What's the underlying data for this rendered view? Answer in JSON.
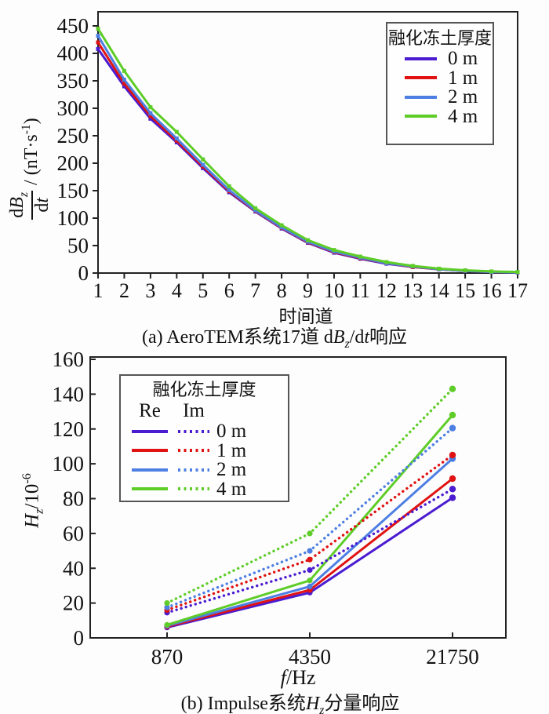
{
  "page": {
    "background": "#fdfdfd"
  },
  "colors": {
    "axis": "#222222",
    "text": "#111111",
    "series": {
      "0 m": "#4a1bd0",
      "1 m": "#e01212",
      "2 m": "#4d7fe3",
      "4 m": "#5ecd28"
    }
  },
  "chart_data": [
    {
      "id": "aerotem",
      "type": "line",
      "caption": {
        "pre": "(a) AeroTEM系统17道 d",
        "var1": "B",
        "sub1": "z",
        "mid": "/d",
        "var2": "t",
        "post": "响应"
      },
      "xlabel": "时间道",
      "ylabel": {
        "num_pre": "d",
        "num_var": "B",
        "num_sub": "z",
        "den_pre": "d",
        "den_var": "t",
        "units_pre": " / (nT·s",
        "units_sup": "-1",
        "units_post": ")"
      },
      "x": [
        1,
        2,
        3,
        4,
        5,
        6,
        7,
        8,
        9,
        10,
        11,
        12,
        13,
        14,
        15,
        16,
        17
      ],
      "xticks": [
        1,
        2,
        3,
        4,
        5,
        6,
        7,
        8,
        9,
        10,
        11,
        12,
        13,
        14,
        15,
        16,
        17
      ],
      "xlim": [
        1,
        17
      ],
      "yticks": [
        0,
        50,
        100,
        150,
        200,
        250,
        300,
        350,
        400,
        450
      ],
      "ylim": [
        0,
        476
      ],
      "grid": false,
      "legend_position": "top-right",
      "legend": {
        "title": "融化冻土厚度",
        "items": [
          "0 m",
          "1 m",
          "2 m",
          "4 m"
        ]
      },
      "series": [
        {
          "name": "0 m",
          "style": "solid",
          "values": [
            408,
            340,
            281,
            238,
            191,
            147,
            112,
            81,
            55,
            37,
            26,
            17,
            11,
            7,
            4,
            2,
            1
          ]
        },
        {
          "name": "1 m",
          "style": "solid",
          "values": [
            420,
            345,
            286,
            241,
            194,
            149,
            113,
            82,
            56,
            38,
            27,
            18,
            11,
            7,
            4,
            2,
            1
          ]
        },
        {
          "name": "2 m",
          "style": "solid",
          "values": [
            432,
            352,
            291,
            245,
            197,
            151,
            114,
            83,
            57,
            39,
            28,
            18,
            12,
            7,
            4,
            2,
            1
          ]
        },
        {
          "name": "4 m",
          "style": "solid",
          "values": [
            445,
            368,
            302,
            257,
            207,
            158,
            118,
            87,
            60,
            42,
            30,
            20,
            13,
            8,
            5,
            3,
            2
          ]
        }
      ]
    },
    {
      "id": "impulse",
      "type": "line",
      "caption": {
        "pre": "(b) Impulse系统",
        "var": "H",
        "sub": "z",
        "post": "分量响应"
      },
      "xlabel": {
        "var": "f",
        "rest": "/Hz"
      },
      "ylabel": {
        "var": "H",
        "sub": "z",
        "rest": "/10",
        "sup": "-6"
      },
      "x": [
        870,
        4350,
        21750
      ],
      "xticks": [
        870,
        4350,
        21750
      ],
      "x_scale": "log-like (equal spacing)",
      "yticks": [
        0,
        20,
        40,
        60,
        80,
        100,
        120,
        140,
        160
      ],
      "ylim": [
        0,
        161
      ],
      "grid": false,
      "legend_position": "top-left",
      "legend": {
        "title": "融化冻土厚度",
        "columns": [
          "Re",
          "Im"
        ],
        "items": [
          "0 m",
          "1 m",
          "2 m",
          "4 m"
        ]
      },
      "series": [
        {
          "name": "0 m",
          "component": "Re",
          "style": "solid",
          "values": [
            6,
            26,
            80.5
          ]
        },
        {
          "name": "1 m",
          "component": "Re",
          "style": "solid",
          "values": [
            6.5,
            27.5,
            91.5
          ]
        },
        {
          "name": "2 m",
          "component": "Re",
          "style": "solid",
          "values": [
            7,
            29.5,
            103
          ]
        },
        {
          "name": "4 m",
          "component": "Re",
          "style": "solid",
          "values": [
            7.5,
            33,
            128
          ]
        },
        {
          "name": "0 m",
          "component": "Im",
          "style": "dotted",
          "values": [
            14.5,
            39,
            85.5
          ]
        },
        {
          "name": "1 m",
          "component": "Im",
          "style": "dotted",
          "values": [
            16,
            45,
            105
          ]
        },
        {
          "name": "2 m",
          "component": "Im",
          "style": "dotted",
          "values": [
            17.5,
            50,
            120.5
          ]
        },
        {
          "name": "4 m",
          "component": "Im",
          "style": "dotted",
          "values": [
            20,
            60,
            143
          ]
        }
      ]
    }
  ]
}
